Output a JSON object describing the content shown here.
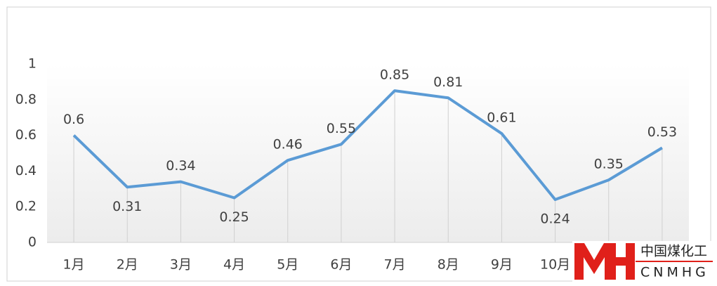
{
  "chart_data": {
    "type": "line",
    "categories": [
      "1月",
      "2月",
      "3月",
      "4月",
      "5月",
      "6月",
      "7月",
      "8月",
      "9月",
      "10月",
      null,
      null
    ],
    "series": [
      {
        "color": "#5b9bd5",
        "values": [
          0.6,
          0.31,
          0.34,
          0.25,
          0.46,
          0.55,
          0.85,
          0.81,
          0.61,
          0.24,
          0.35,
          0.53
        ]
      }
    ],
    "ylim": [
      0,
      1
    ],
    "yticks": [
      0,
      0.2,
      0.4,
      0.6,
      0.8,
      1
    ],
    "grid": false,
    "drop_lines": true
  },
  "watermark": {
    "title": "中国煤化工",
    "subtitle": "CNMHG"
  }
}
